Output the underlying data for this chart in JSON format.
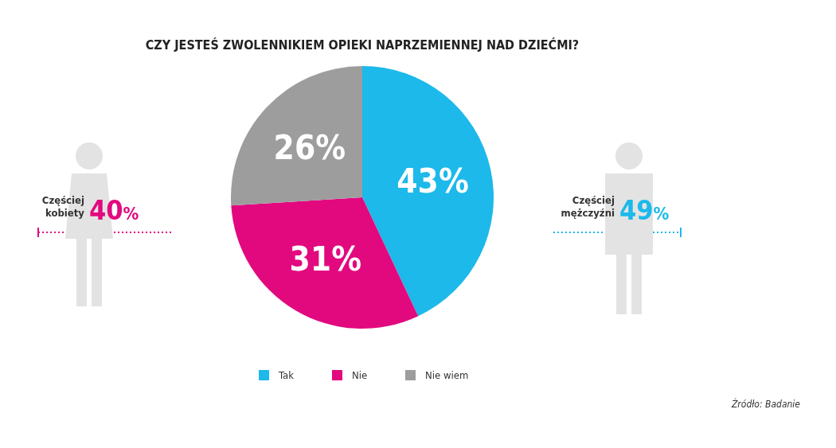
{
  "chart_data": {
    "type": "pie",
    "title": "CZY JESTEŚ ZWOLENNIKIEM OPIEKI NAPRZEMIENNEJ NAD DZIEĆMI?",
    "categories": [
      "Tak",
      "Nie",
      "Nie wiem"
    ],
    "values": [
      43,
      31,
      26
    ],
    "colors": [
      "#1cb9ea",
      "#e2097f",
      "#9d9d9d"
    ],
    "value_labels": [
      "43%",
      "31%",
      "26%"
    ],
    "legend": "bottom",
    "annotations": [
      "Częściej kobiety 40%",
      "Częściej mężczyźni 49%",
      "Źródło: Badanie"
    ]
  }
}
